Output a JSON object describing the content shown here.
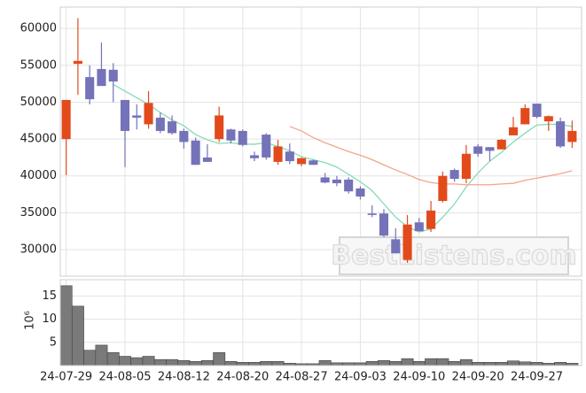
{
  "chart_data": {
    "type": "candlestick",
    "categories": [
      "24-07-29",
      null,
      null,
      null,
      null,
      "24-08-05",
      null,
      null,
      null,
      null,
      "24-08-12",
      null,
      null,
      null,
      null,
      "24-08-20",
      null,
      null,
      null,
      null,
      "24-08-27",
      null,
      null,
      null,
      null,
      "24-09-03",
      null,
      null,
      null,
      null,
      "24-09-10",
      null,
      null,
      null,
      null,
      "24-09-20",
      null,
      null,
      null,
      null,
      "24-09-27",
      null,
      null,
      null
    ],
    "open": [
      45000,
      55200,
      53400,
      54500,
      54400,
      50300,
      48200,
      47000,
      47900,
      47400,
      46100,
      44800,
      42500,
      45000,
      46300,
      46100,
      42800,
      45600,
      41900,
      43300,
      41600,
      42100,
      39800,
      39500,
      39500,
      38300,
      34900,
      34900,
      31400,
      28600,
      33700,
      32800,
      36600,
      40800,
      39600,
      44000,
      43900,
      43600,
      45500,
      47000,
      49800,
      47400,
      47400,
      44600
    ],
    "high": [
      50300,
      61400,
      55000,
      58100,
      55300,
      50300,
      49700,
      51500,
      48600,
      48200,
      46400,
      45200,
      44300,
      49400,
      46400,
      46300,
      43300,
      45800,
      44900,
      44400,
      42500,
      42200,
      40400,
      40000,
      39800,
      38600,
      36000,
      35500,
      32900,
      34700,
      34300,
      36600,
      40600,
      41000,
      44200,
      44300,
      43900,
      45000,
      48000,
      49700,
      49800,
      48200,
      47900,
      47500
    ],
    "low": [
      40100,
      51000,
      49700,
      52200,
      50000,
      41200,
      46300,
      46400,
      45800,
      45600,
      43700,
      41500,
      41900,
      44600,
      44400,
      44000,
      42000,
      42200,
      41500,
      41600,
      41300,
      41500,
      39000,
      38600,
      37600,
      36800,
      34400,
      31700,
      29500,
      28200,
      32500,
      32400,
      36400,
      39200,
      39000,
      42600,
      42000,
      43600,
      45500,
      47000,
      47800,
      46100,
      43800,
      43800
    ],
    "close": [
      50300,
      55600,
      50400,
      52200,
      52800,
      46100,
      47900,
      49900,
      46100,
      45800,
      44600,
      41500,
      41900,
      48200,
      44800,
      44200,
      42400,
      42500,
      44000,
      42000,
      42400,
      41500,
      39100,
      39000,
      37900,
      37200,
      34700,
      31900,
      29500,
      33400,
      32500,
      35300,
      40000,
      39600,
      43000,
      43000,
      43400,
      44900,
      46600,
      49200,
      48000,
      48100,
      44000,
      46100
    ],
    "up_color": "#e24a1c",
    "down_color": "#7472b8",
    "series": [
      {
        "color": "#86dab6",
        "values": [
          null,
          null,
          null,
          null,
          52400,
          51500,
          50600,
          49700,
          48600,
          47600,
          46800,
          45600,
          44900,
          44400,
          44500,
          44300,
          44300,
          44500,
          44000,
          43400,
          42600,
          42200,
          41800,
          41200,
          40200,
          39200,
          38000,
          36200,
          34400,
          33100,
          32400,
          32800,
          34400,
          36200,
          38500,
          40400,
          42000,
          43200,
          44600,
          45800,
          46900,
          47000,
          47000,
          46700
        ]
      },
      {
        "color": "#f2a58c",
        "values": [
          null,
          null,
          null,
          null,
          null,
          null,
          null,
          null,
          null,
          null,
          null,
          null,
          null,
          null,
          null,
          null,
          null,
          null,
          null,
          46700,
          46100,
          45200,
          44500,
          43900,
          43300,
          42800,
          42200,
          41500,
          40800,
          40200,
          39500,
          39100,
          38900,
          38900,
          38800,
          38800,
          38800,
          38900,
          39000,
          39400,
          39700,
          40000,
          40300,
          40700
        ]
      }
    ],
    "ylim": [
      26400,
      62900
    ],
    "yticks": [
      30000,
      35000,
      40000,
      45000,
      50000,
      55000,
      60000
    ],
    "grid": true,
    "volume": {
      "label": "10⁶",
      "color": "#7a7a7a",
      "ylim": [
        0,
        18.5
      ],
      "yticks": [
        5,
        10,
        15
      ],
      "values": [
        17.2,
        12.8,
        3.3,
        4.4,
        2.8,
        2.0,
        1.7,
        2.0,
        1.3,
        1.3,
        1.1,
        0.9,
        1.1,
        2.8,
        0.9,
        0.7,
        0.7,
        0.9,
        0.9,
        0.5,
        0.4,
        0.4,
        1.1,
        0.6,
        0.6,
        0.6,
        0.9,
        1.1,
        0.9,
        1.5,
        0.9,
        1.5,
        1.5,
        0.9,
        1.3,
        0.7,
        0.7,
        0.7,
        1.0,
        0.8,
        0.7,
        0.5,
        0.7,
        0.5
      ]
    },
    "watermark": "BestListens.com"
  }
}
